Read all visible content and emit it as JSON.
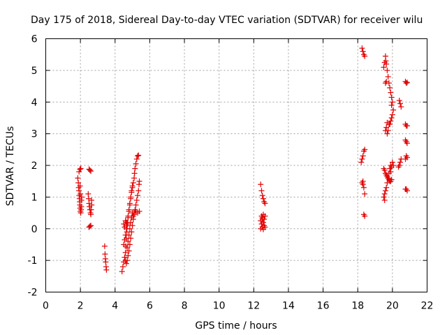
{
  "chart_data": {
    "type": "scatter",
    "title": "Day 175 of 2018, Sidereal Day-to-day VTEC variation (SDTVAR) for receiver wilu",
    "xlabel": "GPS time / hours",
    "ylabel": "SDTVAR / TECUs",
    "xlim": [
      0,
      22
    ],
    "ylim": [
      -2,
      6
    ],
    "xticks": [
      0,
      2,
      4,
      6,
      8,
      10,
      12,
      14,
      16,
      18,
      20,
      22
    ],
    "yticks": [
      -2,
      -1,
      0,
      1,
      2,
      3,
      4,
      5,
      6
    ],
    "grid": true,
    "marker": "plus",
    "color": "#e00000",
    "series": [
      {
        "name": "SDTVAR",
        "points": [
          [
            1.85,
            1.6
          ],
          [
            1.88,
            1.45
          ],
          [
            1.9,
            1.3
          ],
          [
            1.92,
            1.2
          ],
          [
            1.93,
            1.05
          ],
          [
            1.95,
            0.95
          ],
          [
            1.96,
            0.85
          ],
          [
            1.97,
            0.75
          ],
          [
            1.98,
            0.65
          ],
          [
            2.0,
            0.55
          ],
          [
            2.02,
            0.5
          ],
          [
            2.04,
            0.6
          ],
          [
            2.05,
            0.7
          ],
          [
            2.0,
            1.1
          ],
          [
            1.98,
            1.35
          ],
          [
            1.92,
            1.8
          ],
          [
            1.97,
            1.88
          ],
          [
            2.02,
            1.9
          ],
          [
            2.06,
            0.9
          ],
          [
            2.07,
            1.0
          ],
          [
            2.45,
            1.1
          ],
          [
            2.48,
            0.95
          ],
          [
            2.5,
            0.8
          ],
          [
            2.52,
            0.7
          ],
          [
            2.55,
            0.6
          ],
          [
            2.58,
            0.5
          ],
          [
            2.6,
            0.45
          ],
          [
            2.62,
            0.6
          ],
          [
            2.65,
            0.75
          ],
          [
            2.5,
            0.05
          ],
          [
            2.55,
            0.08
          ],
          [
            2.6,
            0.1
          ],
          [
            2.5,
            1.88
          ],
          [
            2.55,
            1.85
          ],
          [
            2.6,
            1.82
          ],
          [
            2.64,
            0.9
          ],
          [
            3.4,
            -0.55
          ],
          [
            3.42,
            -0.8
          ],
          [
            3.44,
            -0.95
          ],
          [
            3.46,
            -1.05
          ],
          [
            3.48,
            -1.2
          ],
          [
            3.5,
            -1.3
          ],
          [
            4.4,
            -1.35
          ],
          [
            4.45,
            -1.2
          ],
          [
            4.5,
            -1.05
          ],
          [
            4.55,
            -0.9
          ],
          [
            4.6,
            -0.75
          ],
          [
            4.62,
            -0.55
          ],
          [
            4.65,
            -0.3
          ],
          [
            4.68,
            -0.1
          ],
          [
            4.72,
            0.15
          ],
          [
            4.75,
            0.35
          ],
          [
            4.8,
            0.55
          ],
          [
            4.85,
            0.75
          ],
          [
            4.9,
            0.95
          ],
          [
            4.95,
            1.15
          ],
          [
            5.0,
            1.3
          ],
          [
            5.05,
            1.45
          ],
          [
            5.1,
            1.6
          ],
          [
            5.12,
            1.75
          ],
          [
            5.15,
            1.9
          ],
          [
            5.2,
            2.05
          ],
          [
            5.25,
            2.2
          ],
          [
            5.3,
            2.3
          ],
          [
            5.35,
            2.32
          ],
          [
            4.5,
            -0.5
          ],
          [
            4.55,
            -0.35
          ],
          [
            4.6,
            -0.2
          ],
          [
            4.65,
            0.0
          ],
          [
            4.7,
            0.2
          ],
          [
            4.75,
            0.4
          ],
          [
            4.8,
            0.6
          ],
          [
            4.85,
            0.8
          ],
          [
            4.9,
            1.0
          ],
          [
            4.95,
            1.2
          ],
          [
            5.0,
            1.35
          ],
          [
            4.6,
            -1.0
          ],
          [
            4.65,
            -1.1
          ],
          [
            4.7,
            -1.0
          ],
          [
            4.75,
            -0.85
          ],
          [
            4.8,
            -0.7
          ],
          [
            4.85,
            -0.5
          ],
          [
            4.9,
            -0.3
          ],
          [
            4.95,
            -0.1
          ],
          [
            5.0,
            0.1
          ],
          [
            5.05,
            0.3
          ],
          [
            5.1,
            0.45
          ],
          [
            5.15,
            0.6
          ],
          [
            5.2,
            0.75
          ],
          [
            5.25,
            0.9
          ],
          [
            5.3,
            1.05
          ],
          [
            5.35,
            1.2
          ],
          [
            5.38,
            1.4
          ],
          [
            5.4,
            1.5
          ],
          [
            4.7,
            -0.6
          ],
          [
            4.75,
            -0.4
          ],
          [
            4.8,
            -0.2
          ],
          [
            4.85,
            0.0
          ],
          [
            4.9,
            0.2
          ],
          [
            4.95,
            0.35
          ],
          [
            5.0,
            0.5
          ],
          [
            5.05,
            0.4
          ],
          [
            5.1,
            0.5
          ],
          [
            5.2,
            0.55
          ],
          [
            5.3,
            0.5
          ],
          [
            5.4,
            0.55
          ],
          [
            4.5,
            0.15
          ],
          [
            4.55,
            0.05
          ],
          [
            4.6,
            0.25
          ],
          [
            4.65,
            0.2
          ],
          [
            4.7,
            0.1
          ],
          [
            12.4,
            1.4
          ],
          [
            12.45,
            1.2
          ],
          [
            12.5,
            1.05
          ],
          [
            12.55,
            0.95
          ],
          [
            12.6,
            0.85
          ],
          [
            12.65,
            0.8
          ],
          [
            12.45,
            0.4
          ],
          [
            12.5,
            0.3
          ],
          [
            12.55,
            0.2
          ],
          [
            12.6,
            0.1
          ],
          [
            12.65,
            0.05
          ],
          [
            12.4,
            0.0
          ],
          [
            12.45,
            0.15
          ],
          [
            12.5,
            0.35
          ],
          [
            12.55,
            0.45
          ],
          [
            12.6,
            0.3
          ],
          [
            12.4,
            0.25
          ],
          [
            12.65,
            0.4
          ],
          [
            12.5,
            0.05
          ],
          [
            12.55,
            -0.02
          ],
          [
            18.25,
            5.7
          ],
          [
            18.3,
            5.6
          ],
          [
            18.35,
            5.5
          ],
          [
            18.4,
            5.45
          ],
          [
            18.2,
            2.1
          ],
          [
            18.25,
            2.2
          ],
          [
            18.3,
            2.3
          ],
          [
            18.35,
            2.45
          ],
          [
            18.4,
            2.5
          ],
          [
            18.25,
            1.45
          ],
          [
            18.3,
            1.4
          ],
          [
            18.35,
            1.3
          ],
          [
            18.4,
            1.1
          ],
          [
            18.35,
            0.45
          ],
          [
            18.4,
            0.4
          ],
          [
            18.3,
            1.5
          ],
          [
            19.6,
            5.45
          ],
          [
            19.62,
            5.3
          ],
          [
            19.65,
            5.2
          ],
          [
            19.7,
            5.0
          ],
          [
            19.75,
            4.8
          ],
          [
            19.8,
            4.6
          ],
          [
            19.85,
            4.45
          ],
          [
            19.9,
            4.3
          ],
          [
            19.95,
            4.15
          ],
          [
            20.0,
            4.0
          ],
          [
            19.5,
            1.0
          ],
          [
            19.55,
            1.1
          ],
          [
            19.6,
            1.2
          ],
          [
            19.65,
            1.3
          ],
          [
            19.7,
            1.45
          ],
          [
            19.75,
            1.6
          ],
          [
            19.8,
            1.75
          ],
          [
            19.85,
            1.9
          ],
          [
            19.9,
            2.0
          ],
          [
            19.55,
            0.9
          ],
          [
            19.5,
            1.9
          ],
          [
            19.55,
            1.85
          ],
          [
            19.6,
            1.75
          ],
          [
            19.65,
            1.7
          ],
          [
            19.7,
            1.65
          ],
          [
            19.75,
            1.6
          ],
          [
            19.8,
            1.55
          ],
          [
            19.85,
            1.5
          ],
          [
            19.9,
            1.5
          ],
          [
            19.95,
            1.55
          ],
          [
            19.95,
            3.5
          ],
          [
            20.0,
            3.6
          ],
          [
            19.9,
            3.4
          ],
          [
            19.85,
            3.3
          ],
          [
            19.8,
            3.3
          ],
          [
            19.7,
            3.35
          ],
          [
            19.65,
            3.2
          ],
          [
            19.6,
            3.1
          ],
          [
            20.05,
            3.75
          ],
          [
            19.95,
            3.9
          ],
          [
            19.5,
            5.1
          ],
          [
            19.55,
            5.25
          ],
          [
            19.6,
            4.6
          ],
          [
            19.65,
            4.65
          ],
          [
            20.0,
            2.1
          ],
          [
            20.05,
            2.0
          ],
          [
            19.9,
            1.8
          ],
          [
            19.95,
            1.95
          ],
          [
            19.7,
            3.0
          ],
          [
            19.75,
            3.1
          ],
          [
            20.4,
            4.05
          ],
          [
            20.45,
            3.95
          ],
          [
            20.5,
            3.85
          ],
          [
            20.5,
            2.2
          ],
          [
            20.45,
            2.1
          ],
          [
            20.4,
            2.0
          ],
          [
            20.35,
            1.95
          ],
          [
            20.75,
            4.65
          ],
          [
            20.8,
            4.6
          ],
          [
            20.85,
            4.62
          ],
          [
            20.75,
            3.3
          ],
          [
            20.8,
            3.25
          ],
          [
            20.85,
            3.25
          ],
          [
            20.75,
            2.8
          ],
          [
            20.8,
            2.75
          ],
          [
            20.85,
            2.7
          ],
          [
            20.8,
            2.3
          ],
          [
            20.85,
            2.25
          ],
          [
            20.75,
            2.2
          ],
          [
            20.8,
            1.25
          ],
          [
            20.85,
            1.2
          ],
          [
            20.75,
            1.25
          ]
        ]
      }
    ]
  }
}
